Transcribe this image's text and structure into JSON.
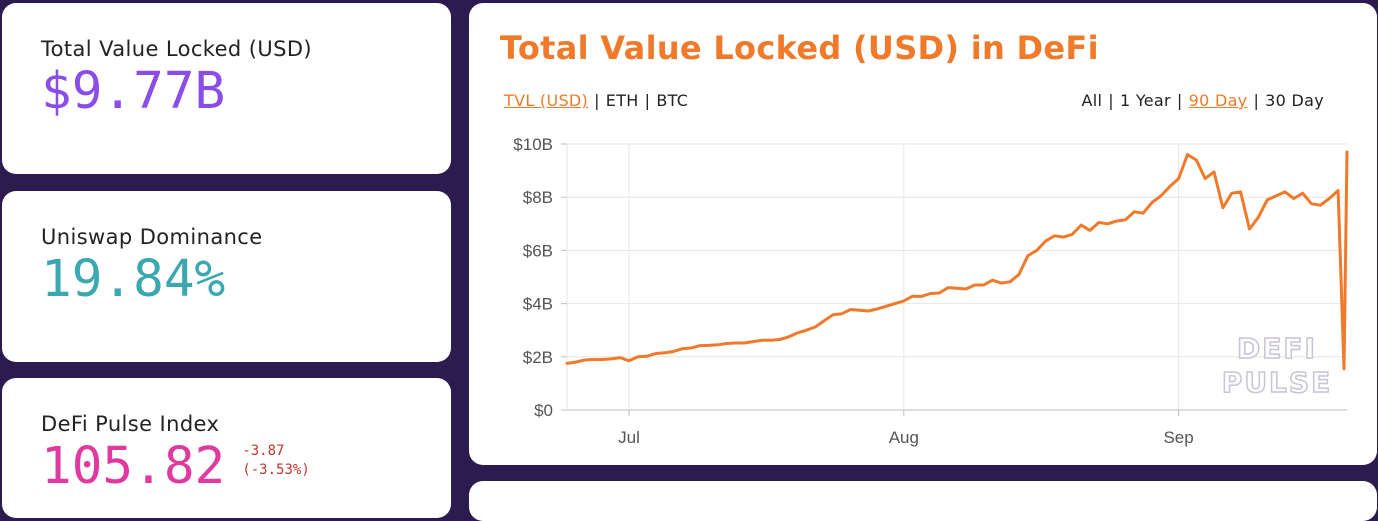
{
  "stats": {
    "tvl": {
      "label": "Total Value Locked (USD)",
      "value": "$9.77B"
    },
    "uniswap": {
      "label": "Uniswap Dominance",
      "value": "19.84%"
    },
    "dpi": {
      "label": "DeFi Pulse Index",
      "value": "105.82",
      "change_abs": "-3.87",
      "change_pct": "(-3.53%)"
    }
  },
  "chart_panel": {
    "title": "Total Value Locked (USD) in DeFi",
    "metric_options": [
      "TVL (USD)",
      "ETH",
      "BTC"
    ],
    "metric_active": 0,
    "range_options": [
      "All",
      "1 Year",
      "90 Day",
      "30 Day"
    ],
    "range_active": 2,
    "watermark_line1": "DEFI",
    "watermark_line2": "PULSE"
  },
  "colors": {
    "background": "#2c1b4e",
    "accent": "#f07a2a",
    "tvl_value": "#8a4de8",
    "uniswap_value": "#3aa7b1",
    "dpi_value": "#e03aa0",
    "negative_change": "#c0392b"
  },
  "chart_data": {
    "type": "line",
    "title": "Total Value Locked (USD) in DeFi",
    "xlabel": "",
    "ylabel": "",
    "ylim": [
      0,
      10
    ],
    "y_unit": "billion USD",
    "y_ticks": [
      0,
      2,
      4,
      6,
      8,
      10
    ],
    "y_tick_labels": [
      "$0",
      "$2B",
      "$4B",
      "$6B",
      "$8B",
      "$10B"
    ],
    "x_ticks": [
      "2020-07-01",
      "2020-08-01",
      "2020-09-01"
    ],
    "x_tick_labels": [
      "Jul",
      "Aug",
      "Sep"
    ],
    "x_range": [
      "2020-06-24",
      "2020-09-20"
    ],
    "grid": true,
    "legend": "none",
    "series": [
      {
        "color": "#f07a2a",
        "points": [
          [
            "2020-06-24",
            1.75
          ],
          [
            "2020-06-25",
            1.8
          ],
          [
            "2020-06-26",
            1.88
          ],
          [
            "2020-06-27",
            1.9
          ],
          [
            "2020-06-28",
            1.9
          ],
          [
            "2020-06-29",
            1.92
          ],
          [
            "2020-06-30",
            1.97
          ],
          [
            "2020-07-01",
            1.85
          ],
          [
            "2020-07-02",
            2.0
          ],
          [
            "2020-07-03",
            2.02
          ],
          [
            "2020-07-04",
            2.12
          ],
          [
            "2020-07-05",
            2.15
          ],
          [
            "2020-07-06",
            2.2
          ],
          [
            "2020-07-07",
            2.3
          ],
          [
            "2020-07-08",
            2.33
          ],
          [
            "2020-07-09",
            2.42
          ],
          [
            "2020-07-10",
            2.43
          ],
          [
            "2020-07-11",
            2.45
          ],
          [
            "2020-07-12",
            2.5
          ],
          [
            "2020-07-13",
            2.52
          ],
          [
            "2020-07-14",
            2.52
          ],
          [
            "2020-07-15",
            2.57
          ],
          [
            "2020-07-16",
            2.62
          ],
          [
            "2020-07-17",
            2.62
          ],
          [
            "2020-07-18",
            2.65
          ],
          [
            "2020-07-19",
            2.75
          ],
          [
            "2020-07-20",
            2.9
          ],
          [
            "2020-07-21",
            3.0
          ],
          [
            "2020-07-22",
            3.12
          ],
          [
            "2020-07-23",
            3.35
          ],
          [
            "2020-07-24",
            3.58
          ],
          [
            "2020-07-25",
            3.62
          ],
          [
            "2020-07-26",
            3.78
          ],
          [
            "2020-07-27",
            3.75
          ],
          [
            "2020-07-28",
            3.72
          ],
          [
            "2020-07-29",
            3.8
          ],
          [
            "2020-07-30",
            3.9
          ],
          [
            "2020-07-31",
            4.0
          ],
          [
            "2020-08-01",
            4.1
          ],
          [
            "2020-08-02",
            4.28
          ],
          [
            "2020-08-03",
            4.27
          ],
          [
            "2020-08-04",
            4.38
          ],
          [
            "2020-08-05",
            4.4
          ],
          [
            "2020-08-06",
            4.6
          ],
          [
            "2020-08-07",
            4.58
          ],
          [
            "2020-08-08",
            4.55
          ],
          [
            "2020-08-09",
            4.7
          ],
          [
            "2020-08-10",
            4.7
          ],
          [
            "2020-08-11",
            4.88
          ],
          [
            "2020-08-12",
            4.77
          ],
          [
            "2020-08-13",
            4.82
          ],
          [
            "2020-08-14",
            5.1
          ],
          [
            "2020-08-15",
            5.8
          ],
          [
            "2020-08-16",
            6.0
          ],
          [
            "2020-08-17",
            6.35
          ],
          [
            "2020-08-18",
            6.55
          ],
          [
            "2020-08-19",
            6.5
          ],
          [
            "2020-08-20",
            6.6
          ],
          [
            "2020-08-21",
            6.95
          ],
          [
            "2020-08-22",
            6.75
          ],
          [
            "2020-08-23",
            7.05
          ],
          [
            "2020-08-24",
            7.0
          ],
          [
            "2020-08-25",
            7.1
          ],
          [
            "2020-08-26",
            7.15
          ],
          [
            "2020-08-27",
            7.45
          ],
          [
            "2020-08-28",
            7.4
          ],
          [
            "2020-08-29",
            7.8
          ],
          [
            "2020-08-30",
            8.05
          ],
          [
            "2020-08-31",
            8.4
          ],
          [
            "2020-09-01",
            8.7
          ],
          [
            "2020-09-02",
            9.6
          ],
          [
            "2020-09-03",
            9.4
          ],
          [
            "2020-09-04",
            8.7
          ],
          [
            "2020-09-05",
            8.95
          ],
          [
            "2020-09-06",
            7.6
          ],
          [
            "2020-09-07",
            8.15
          ],
          [
            "2020-09-08",
            8.2
          ],
          [
            "2020-09-09",
            6.8
          ],
          [
            "2020-09-10",
            7.25
          ],
          [
            "2020-09-11",
            7.9
          ],
          [
            "2020-09-12",
            8.05
          ],
          [
            "2020-09-13",
            8.2
          ],
          [
            "2020-09-14",
            7.95
          ],
          [
            "2020-09-15",
            8.15
          ],
          [
            "2020-09-16",
            7.75
          ],
          [
            "2020-09-17",
            7.7
          ],
          [
            "2020-09-18",
            7.95
          ],
          [
            "2020-09-19",
            8.25
          ],
          [
            "2020-09-19T16:00",
            1.55
          ],
          [
            "2020-09-20",
            9.7
          ]
        ]
      }
    ]
  }
}
